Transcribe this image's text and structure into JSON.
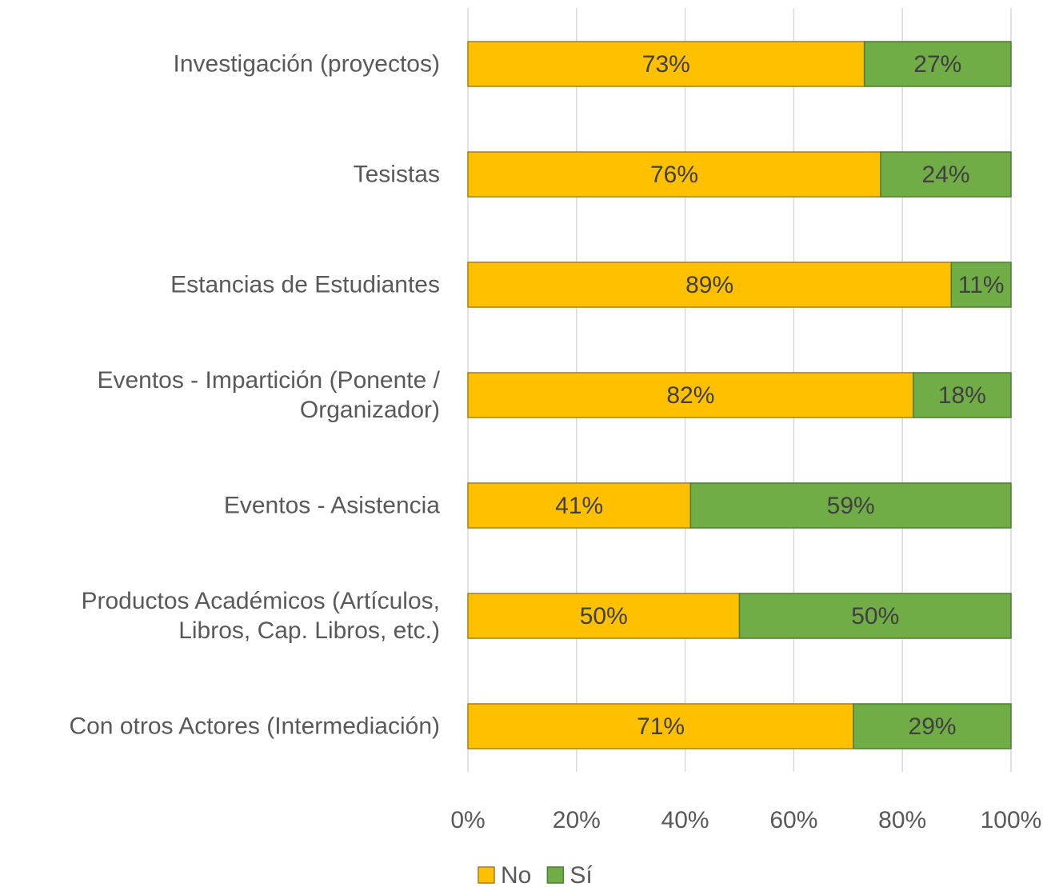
{
  "chart_data": {
    "type": "stacked_barh",
    "categories": [
      "Investigación (proyectos)",
      "Tesistas",
      "Estancias de Estudiantes",
      "Eventos - Impartición (Ponente /\nOrganizador)",
      "Eventos - Asistencia",
      "Productos Académicos (Artículos,\nLibros, Cap. Libros, etc.)",
      "Con otros Actores (Intermediación)"
    ],
    "series": [
      {
        "name": "No",
        "color": "#ffc000",
        "values": [
          73,
          76,
          89,
          82,
          41,
          50,
          71
        ],
        "value_labels": [
          "73%",
          "76%",
          "89%",
          "82%",
          "41%",
          "50%",
          "71%"
        ]
      },
      {
        "name": "Sí",
        "color": "#70ad47",
        "values": [
          27,
          24,
          11,
          18,
          59,
          50,
          29
        ],
        "value_labels": [
          "27%",
          "24%",
          "11%",
          "18%",
          "59%",
          "50%",
          "29%"
        ]
      }
    ],
    "xlim": [
      0,
      100
    ],
    "xticks": [
      {
        "value": 0,
        "label": "0%"
      },
      {
        "value": 20,
        "label": "20%"
      },
      {
        "value": 40,
        "label": "40%"
      },
      {
        "value": 60,
        "label": "60%"
      },
      {
        "value": 80,
        "label": "80%"
      },
      {
        "value": 100,
        "label": "100%"
      }
    ],
    "grid": true,
    "legend": "bottom"
  }
}
